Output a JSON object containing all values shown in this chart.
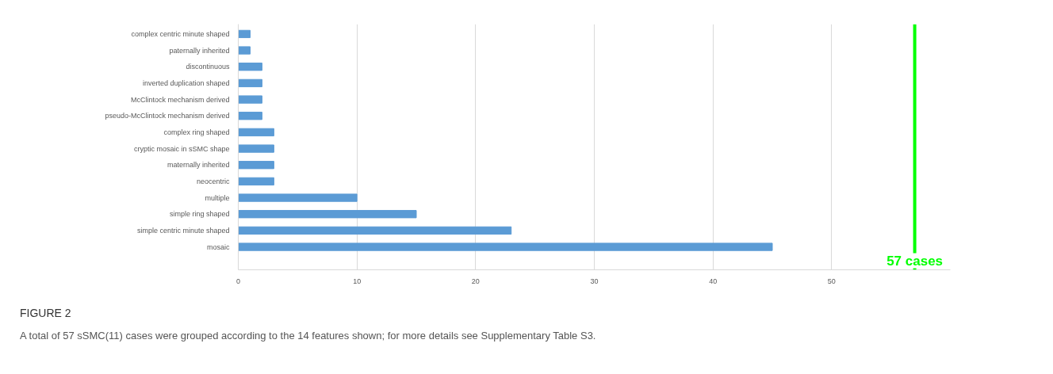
{
  "chart_data": {
    "type": "bar",
    "orientation": "horizontal",
    "title": "FIGURE 2",
    "categories": [
      "complex centric minute shaped",
      "paternally inherited",
      "discontinuous",
      "inverted duplication shaped",
      "McClintock mechanism derived",
      "pseudo-McClintock mechanism derived",
      "complex ring shaped",
      "cryptic mosaic in sSMC shape",
      "maternally inherited",
      "neocentric",
      "multiple",
      "simple ring shaped",
      "simple centric minute shaped",
      "mosaic"
    ],
    "values": [
      1,
      1,
      2,
      2,
      2,
      2,
      3,
      3,
      3,
      3,
      10,
      15,
      23,
      45
    ],
    "color": "#5b9bd5",
    "xlim": [
      0,
      60
    ],
    "xticks": [
      0,
      10,
      20,
      30,
      40,
      50
    ],
    "grid": "x",
    "ref_lines": [
      {
        "axis": "x",
        "value": 57,
        "label": "57 cases",
        "color": "#00ff00"
      }
    ],
    "annotations": [
      "A total of 57 sSMC(11) cases were grouped according to the 14 features shown; for more details see Supplementary Table S3."
    ]
  }
}
